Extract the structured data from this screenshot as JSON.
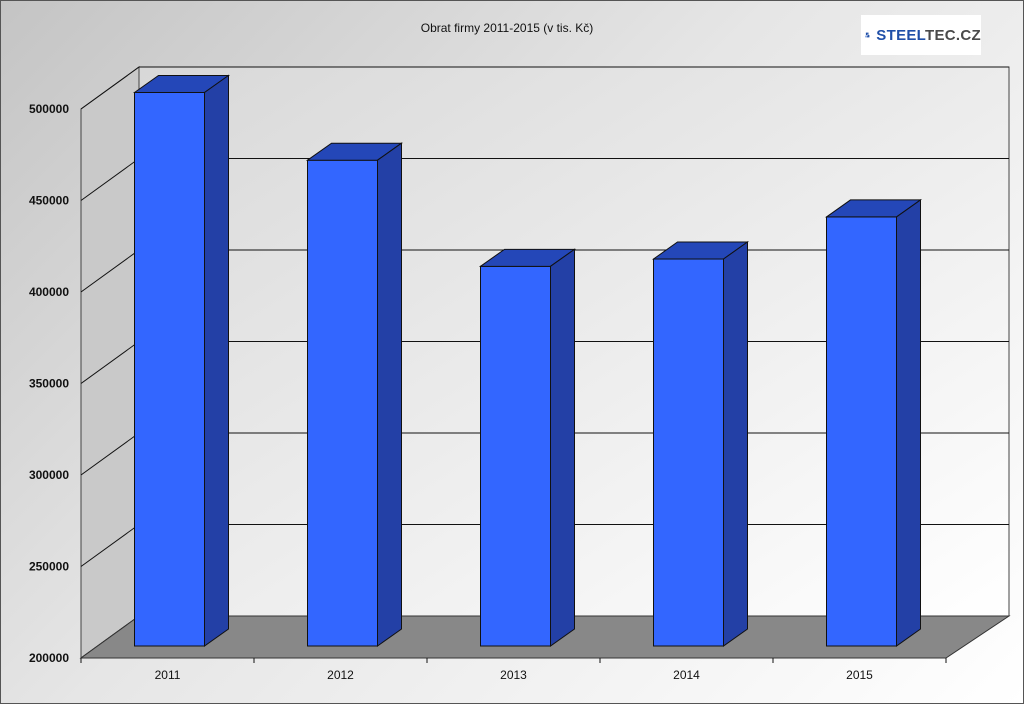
{
  "chart_data": {
    "type": "bar",
    "title": "Obrat firmy 2011-2015 (v tis. Kč)",
    "categories": [
      "2011",
      "2012",
      "2013",
      "2014",
      "2015"
    ],
    "values": [
      497000,
      460000,
      402000,
      406000,
      429000
    ],
    "ylim": [
      200000,
      500000
    ],
    "yticks": [
      "200000",
      "250000",
      "300000",
      "350000",
      "400000",
      "450000",
      "500000"
    ],
    "xlabel": "",
    "ylabel": "",
    "grid": true,
    "legend": "none",
    "bar_color": "#3366ff",
    "bar_top_color": "#2447b8",
    "bar_side_color": "#2340a6",
    "floor_color": "#888888"
  },
  "logo": {
    "part1": "STEEL",
    "part2": "TEC.CZ",
    "color1": "#1f4fa8",
    "color2": "#4a4a4a"
  }
}
